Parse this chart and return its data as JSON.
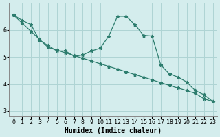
{
  "line1_x": [
    0,
    1,
    2,
    3,
    4,
    5,
    6,
    7,
    8,
    9,
    10,
    11,
    12,
    13,
    14,
    15,
    16,
    17,
    18,
    19,
    20,
    21,
    22,
    23
  ],
  "line1_y": [
    6.55,
    6.35,
    6.2,
    5.62,
    5.42,
    5.22,
    5.22,
    5.02,
    5.07,
    5.22,
    5.32,
    5.77,
    6.5,
    6.5,
    6.2,
    5.8,
    5.77,
    4.7,
    4.37,
    4.25,
    4.07,
    3.75,
    3.6,
    3.35
  ],
  "line2_x": [
    0,
    1,
    2,
    3,
    4,
    5,
    6,
    7,
    8,
    9,
    10,
    11,
    12,
    13,
    14,
    15,
    16,
    17,
    18,
    19,
    20,
    21,
    22,
    23
  ],
  "line2_y": [
    6.55,
    6.25,
    5.95,
    5.65,
    5.35,
    5.25,
    5.15,
    5.05,
    4.95,
    4.85,
    4.75,
    4.65,
    4.55,
    4.45,
    4.35,
    4.25,
    4.15,
    4.05,
    3.95,
    3.85,
    3.75,
    3.65,
    3.45,
    3.35
  ],
  "line_color": "#2d7d6e",
  "bg_color": "#d4eded",
  "grid_color": "#aed4d4",
  "xlabel": "Humidex (Indice chaleur)",
  "xlim": [
    -0.5,
    23.5
  ],
  "ylim": [
    2.8,
    7.0
  ],
  "yticks": [
    3,
    4,
    5,
    6
  ],
  "xticks": [
    0,
    1,
    2,
    3,
    4,
    5,
    6,
    7,
    8,
    9,
    10,
    11,
    12,
    13,
    14,
    15,
    16,
    17,
    18,
    19,
    20,
    21,
    22,
    23
  ],
  "marker": "*",
  "markersize": 3.5,
  "linewidth": 0.9,
  "xlabel_fontsize": 7,
  "tick_fontsize": 6
}
